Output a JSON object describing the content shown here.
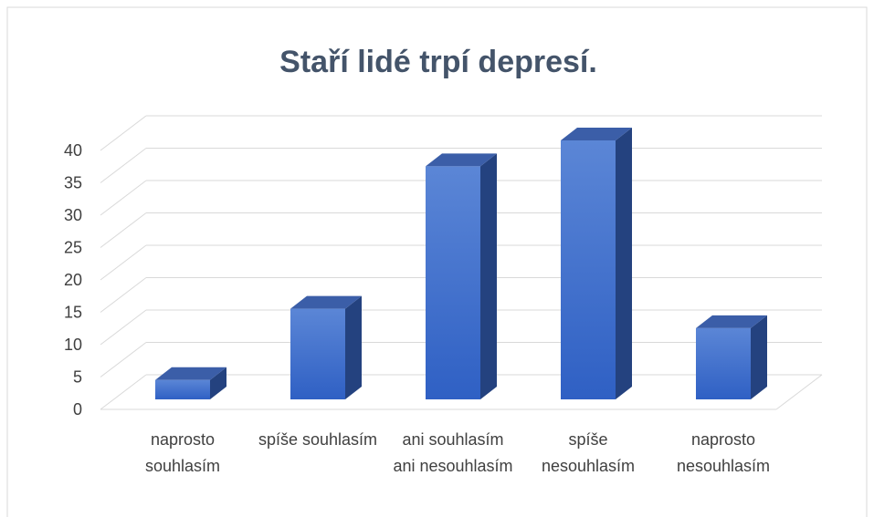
{
  "chart_data": {
    "type": "bar3d",
    "title": "Staří lidé trpí depresí.",
    "categories": [
      "naprosto souhlasím",
      "spíše souhlasím",
      "ani souhlasím ani nesouhlasím",
      "spíše nesouhlasím",
      "naprosto nesouhlasím"
    ],
    "values": [
      3,
      14,
      36,
      40,
      11
    ],
    "color": "#3d6cc9",
    "ylim": [
      0,
      40
    ],
    "yticks": [
      0,
      5,
      10,
      15,
      20,
      25,
      30,
      35,
      40
    ],
    "grid": true
  }
}
